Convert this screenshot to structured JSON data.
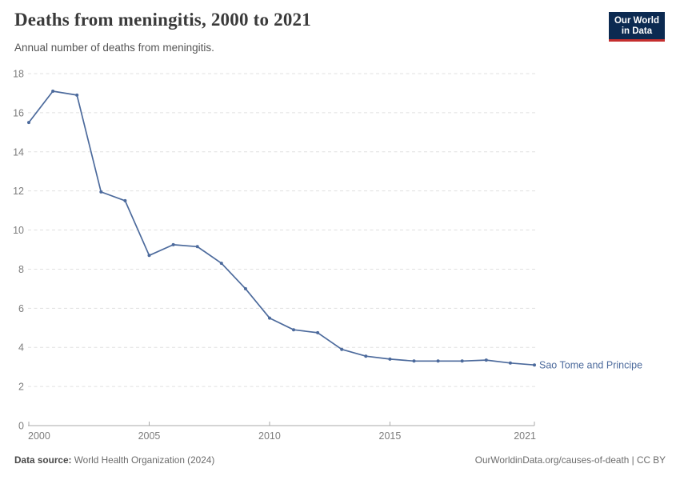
{
  "header": {
    "title": "Deaths from meningitis, 2000 to 2021",
    "subtitle": "Annual number of deaths from meningitis."
  },
  "logo": {
    "line1": "Our World",
    "line2": "in Data"
  },
  "footer": {
    "source_label": "Data source:",
    "source_value": "World Health Organization (2024)",
    "credit": "OurWorldinData.org/causes-of-death | CC BY"
  },
  "colors": {
    "line": "#4c6a9c",
    "point": "#4c6a9c",
    "series_label": "#4c6a9c",
    "grid": "#e0e0e0",
    "axis": "#a8a8a8",
    "tick_label": "#7d7d7d",
    "logo_bg": "#0c2a51",
    "logo_stripe": "#c52e2e"
  },
  "chart_data": {
    "type": "line",
    "title": "Deaths from meningitis, 2000 to 2021",
    "subtitle": "Annual number of deaths from meningitis.",
    "xlabel": "",
    "ylabel": "",
    "x": [
      2000,
      2001,
      2002,
      2003,
      2004,
      2005,
      2006,
      2007,
      2008,
      2009,
      2010,
      2011,
      2012,
      2013,
      2014,
      2015,
      2016,
      2017,
      2018,
      2019,
      2020,
      2021
    ],
    "series": [
      {
        "name": "Sao Tome and Principe",
        "values": [
          15.5,
          17.1,
          16.9,
          11.95,
          11.5,
          8.7,
          9.25,
          9.15,
          8.3,
          7.0,
          5.5,
          4.9,
          4.75,
          3.9,
          3.55,
          3.4,
          3.3,
          3.3,
          3.3,
          3.35,
          3.2,
          3.1
        ]
      }
    ],
    "xticks": [
      2000,
      2005,
      2010,
      2015,
      2021
    ],
    "yticks": [
      0,
      2,
      4,
      6,
      8,
      10,
      12,
      14,
      16,
      18
    ],
    "ylim": [
      0,
      18
    ],
    "xlim": [
      2000,
      2021
    ],
    "grid": "horizontal-dashed",
    "legend_position": "end-of-line-label",
    "markers": true
  }
}
